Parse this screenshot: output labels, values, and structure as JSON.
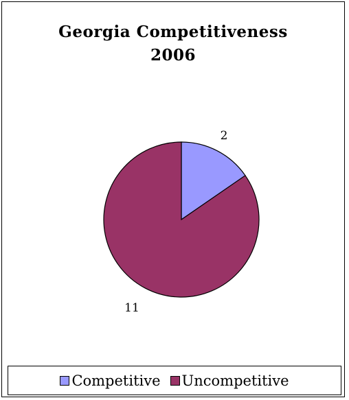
{
  "chart_data": {
    "type": "pie",
    "title_lines": [
      "Georgia Competitiveness",
      "2006"
    ],
    "slices": [
      {
        "label": "Competitive",
        "value": 2,
        "data_label": "2",
        "color": "#9999ff"
      },
      {
        "label": "Uncompetitive",
        "value": 11,
        "data_label": "11",
        "color": "#993366"
      }
    ],
    "legend": {
      "position": "bottom"
    }
  }
}
